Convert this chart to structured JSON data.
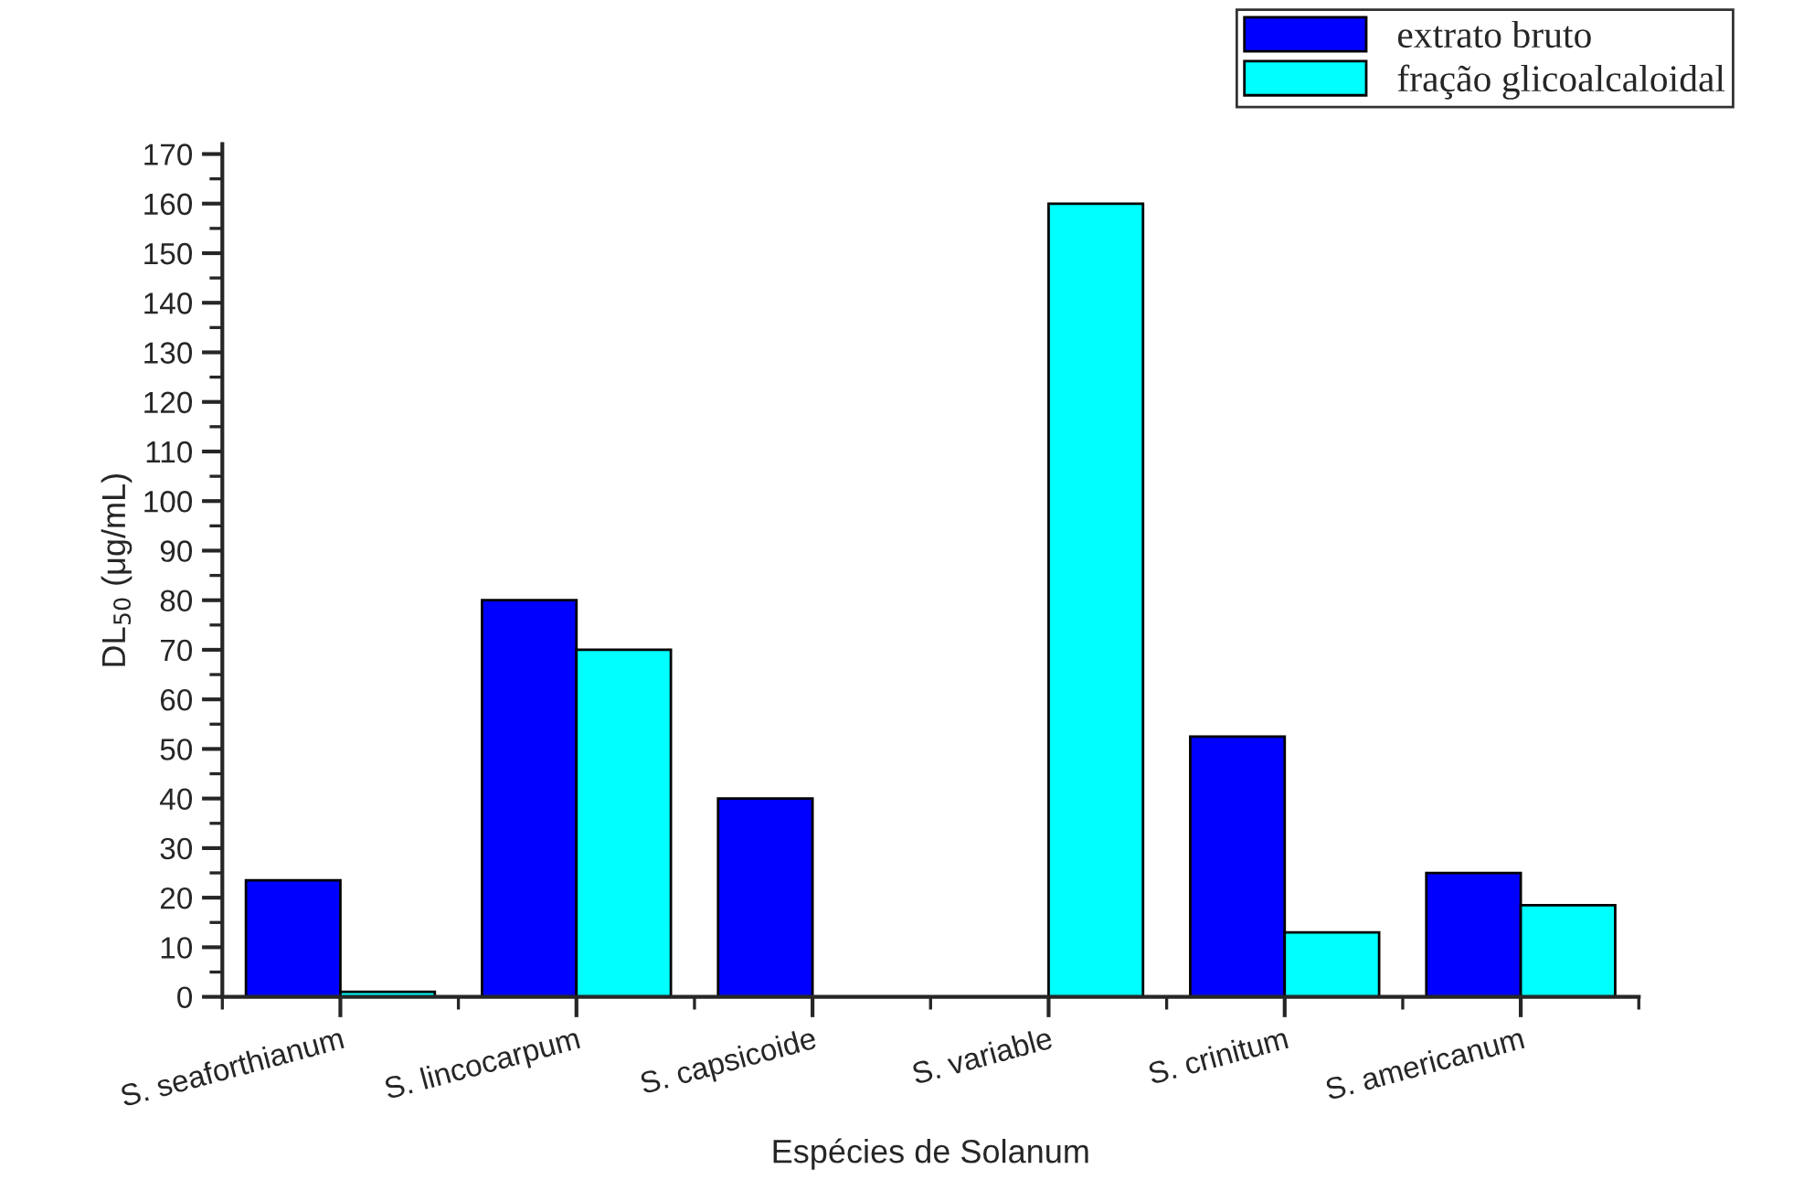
{
  "chart_data": {
    "type": "bar",
    "xlabel": "Espécies de Solanum",
    "ylabel": "DL$_{50}$ (μg/mL)",
    "categories": [
      "S. seaforthianum",
      "S. lincocarpum",
      "S. capsicoide",
      "S. variable",
      "S. crinitum",
      "S. americanum"
    ],
    "series": [
      {
        "name": "extrato bruto",
        "color": "#0000ff",
        "values": [
          23.5,
          80,
          40,
          null,
          52.5,
          25
        ]
      },
      {
        "name": "fração glicoalcaloidal",
        "color": "#00ffff",
        "values": [
          1,
          70,
          null,
          160,
          13,
          18.5
        ]
      }
    ],
    "ylim": [
      0,
      172
    ],
    "yticks": [
      0,
      10,
      20,
      30,
      40,
      50,
      60,
      70,
      80,
      90,
      100,
      110,
      120,
      130,
      140,
      150,
      160,
      170
    ],
    "grid": false,
    "legend": "top right"
  }
}
